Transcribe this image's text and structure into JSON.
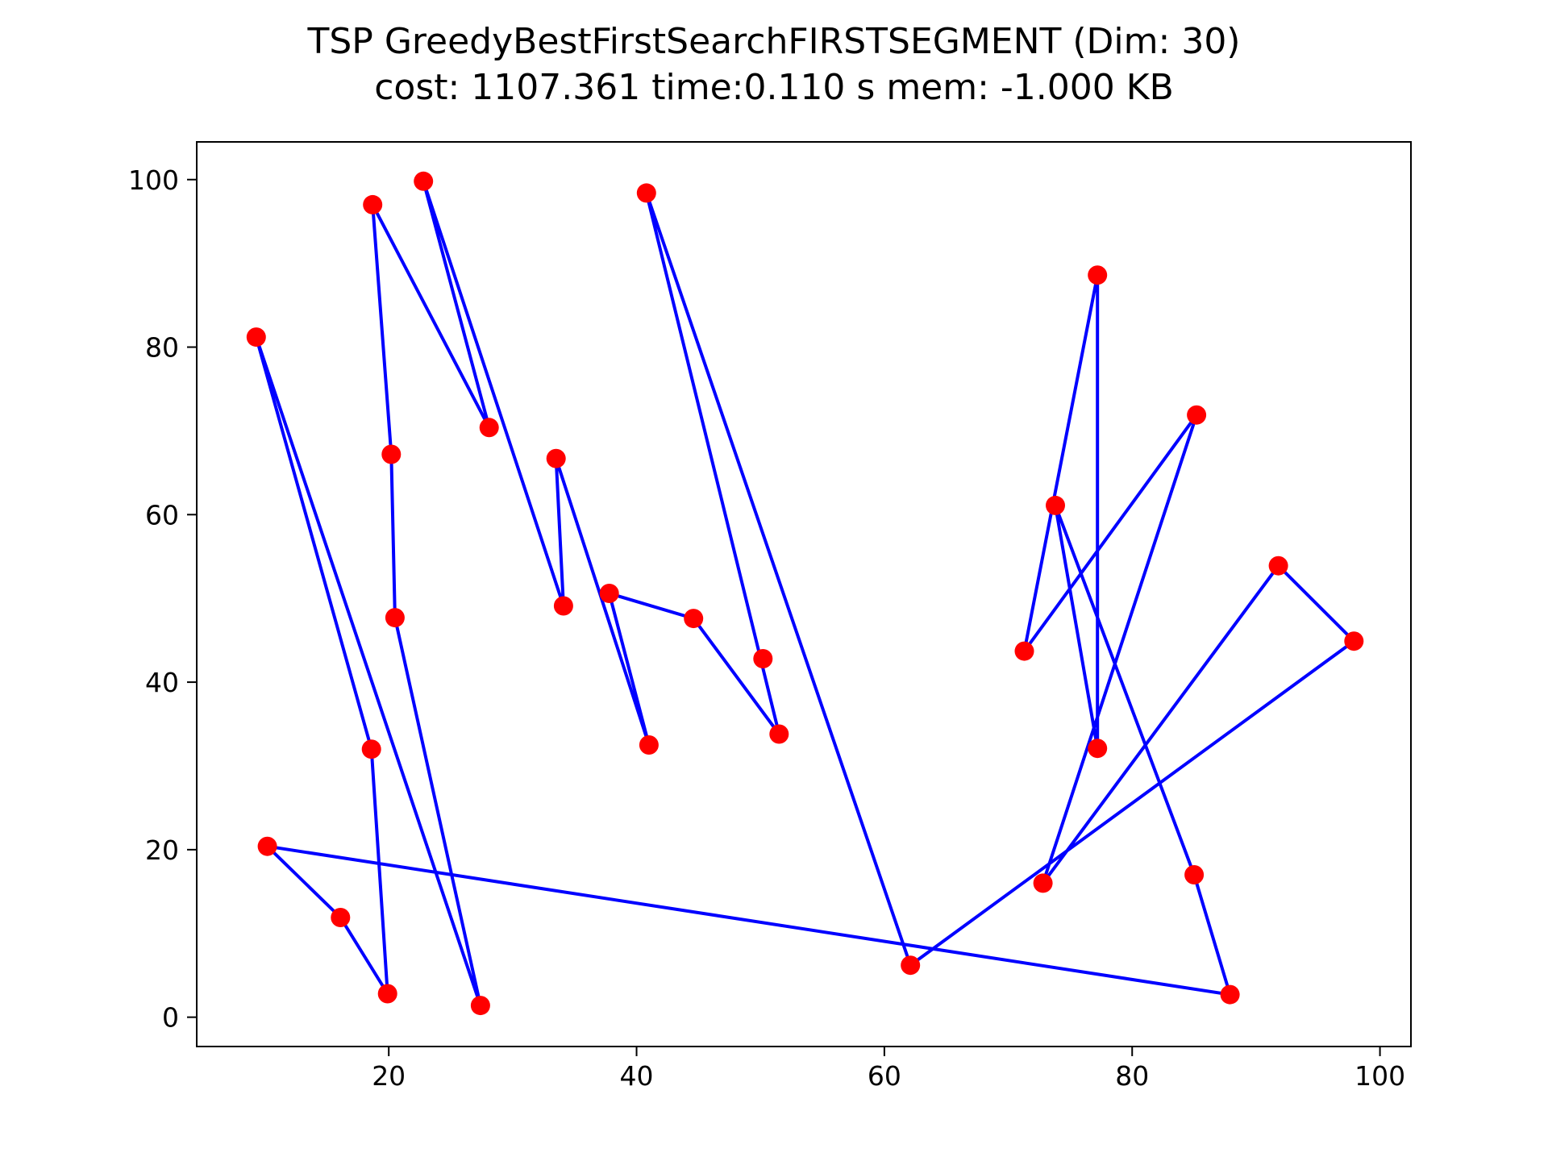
{
  "chart_data": {
    "type": "line",
    "title": "TSP GreedyBestFirstSearchFIRSTSEGMENT (Dim: 30)",
    "subtitle": "cost: 1107.361   time:0.110 s   mem: -1.000 KB",
    "xlabel": "",
    "ylabel": "",
    "xlim": [
      4.5,
      102.5
    ],
    "ylim": [
      -3.5,
      104.5
    ],
    "xticks": [
      20,
      40,
      60,
      80,
      100
    ],
    "yticks": [
      0,
      20,
      40,
      60,
      80,
      100
    ],
    "grid": false,
    "colors": {
      "route": "#0000ff",
      "points": "#ff0000",
      "axes": "#000000"
    },
    "points": [
      [
        9.3,
        81.2
      ],
      [
        22.8,
        99.8
      ],
      [
        18.7,
        97.0
      ],
      [
        40.8,
        98.4
      ],
      [
        77.2,
        88.6
      ],
      [
        85.2,
        71.9
      ],
      [
        28.1,
        70.4
      ],
      [
        20.2,
        67.2
      ],
      [
        33.5,
        66.7
      ],
      [
        73.8,
        61.1
      ],
      [
        91.8,
        53.9
      ],
      [
        34.1,
        49.1
      ],
      [
        37.8,
        50.6
      ],
      [
        20.5,
        47.7
      ],
      [
        44.6,
        47.6
      ],
      [
        71.3,
        43.7
      ],
      [
        50.2,
        42.8
      ],
      [
        97.9,
        44.9
      ],
      [
        51.5,
        33.8
      ],
      [
        41.0,
        32.5
      ],
      [
        77.2,
        32.1
      ],
      [
        18.6,
        32.0
      ],
      [
        10.2,
        20.4
      ],
      [
        72.8,
        16.0
      ],
      [
        85.0,
        17.0
      ],
      [
        16.1,
        11.9
      ],
      [
        62.1,
        6.2
      ],
      [
        19.9,
        2.8
      ],
      [
        27.4,
        1.4
      ],
      [
        87.9,
        2.7
      ]
    ],
    "route": [
      [
        9.3,
        81.2
      ],
      [
        18.6,
        32.0
      ],
      [
        19.9,
        2.8
      ],
      [
        16.1,
        11.9
      ],
      [
        10.2,
        20.4
      ],
      [
        87.9,
        2.7
      ],
      [
        85.0,
        17.0
      ],
      [
        73.8,
        61.1
      ],
      [
        77.2,
        32.1
      ],
      [
        77.2,
        88.6
      ],
      [
        71.3,
        43.7
      ],
      [
        85.2,
        71.9
      ],
      [
        72.8,
        16.0
      ],
      [
        91.8,
        53.9
      ],
      [
        97.9,
        44.9
      ],
      [
        62.1,
        6.2
      ],
      [
        40.8,
        98.4
      ],
      [
        51.5,
        33.8
      ],
      [
        44.6,
        47.6
      ],
      [
        37.8,
        50.6
      ],
      [
        41.0,
        32.5
      ],
      [
        33.5,
        66.7
      ],
      [
        34.1,
        49.1
      ],
      [
        22.8,
        99.8
      ],
      [
        28.1,
        70.4
      ],
      [
        18.7,
        97.0
      ],
      [
        20.2,
        67.2
      ],
      [
        20.5,
        47.7
      ],
      [
        27.4,
        1.4
      ],
      [
        9.3,
        81.2
      ]
    ]
  }
}
